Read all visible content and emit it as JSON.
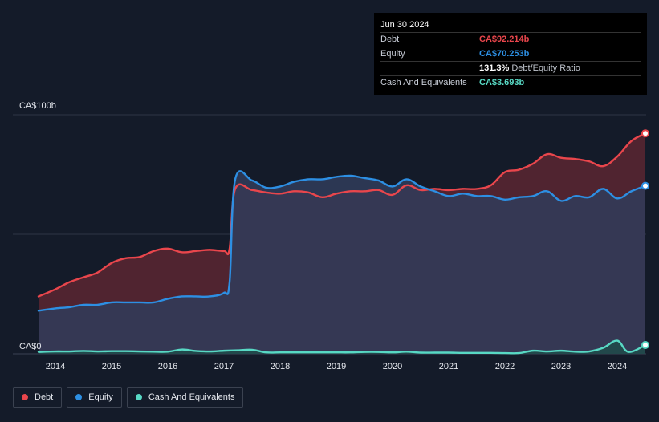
{
  "chart_data": {
    "type": "area",
    "y_top_label": "CA$100b",
    "y_bottom_label": "CA$0",
    "ylim": [
      0,
      100
    ],
    "xlim": [
      2013.7,
      2024.5
    ],
    "grid": true,
    "legend_position": "bottom-left",
    "x_ticks": [
      {
        "value": 2014,
        "label": "2014"
      },
      {
        "value": 2015,
        "label": "2015"
      },
      {
        "value": 2016,
        "label": "2016"
      },
      {
        "value": 2017,
        "label": "2017"
      },
      {
        "value": 2018,
        "label": "2018"
      },
      {
        "value": 2019,
        "label": "2019"
      },
      {
        "value": 2020,
        "label": "2020"
      },
      {
        "value": 2021,
        "label": "2021"
      },
      {
        "value": 2022,
        "label": "2022"
      },
      {
        "value": 2023,
        "label": "2023"
      },
      {
        "value": 2024,
        "label": "2024"
      }
    ],
    "series": [
      {
        "name": "Debt",
        "color": "#e9464c",
        "fill": "#5a2631",
        "points": [
          [
            2013.7,
            24
          ],
          [
            2014.0,
            27
          ],
          [
            2014.25,
            30
          ],
          [
            2014.5,
            32
          ],
          [
            2014.75,
            34
          ],
          [
            2015.0,
            38
          ],
          [
            2015.25,
            40
          ],
          [
            2015.5,
            40.5
          ],
          [
            2015.75,
            43
          ],
          [
            2016.0,
            44
          ],
          [
            2016.25,
            42.5
          ],
          [
            2016.5,
            43
          ],
          [
            2016.75,
            43.5
          ],
          [
            2017.0,
            43
          ],
          [
            2017.1,
            44
          ],
          [
            2017.2,
            69
          ],
          [
            2017.5,
            68.5
          ],
          [
            2017.75,
            67.5
          ],
          [
            2018.0,
            67
          ],
          [
            2018.25,
            68
          ],
          [
            2018.5,
            67.5
          ],
          [
            2018.75,
            65.5
          ],
          [
            2019.0,
            67
          ],
          [
            2019.25,
            68
          ],
          [
            2019.5,
            68
          ],
          [
            2019.75,
            68.5
          ],
          [
            2020.0,
            66.5
          ],
          [
            2020.25,
            70.5
          ],
          [
            2020.5,
            68.5
          ],
          [
            2020.75,
            69
          ],
          [
            2021.0,
            68.5
          ],
          [
            2021.25,
            69
          ],
          [
            2021.5,
            69
          ],
          [
            2021.75,
            70.5
          ],
          [
            2022.0,
            76
          ],
          [
            2022.25,
            77
          ],
          [
            2022.5,
            79.5
          ],
          [
            2022.75,
            83.5
          ],
          [
            2023.0,
            82
          ],
          [
            2023.25,
            81.5
          ],
          [
            2023.5,
            80.5
          ],
          [
            2023.75,
            78.5
          ],
          [
            2024.0,
            82.5
          ],
          [
            2024.25,
            89
          ],
          [
            2024.5,
            92.214
          ]
        ]
      },
      {
        "name": "Equity",
        "color": "#2d8fe3",
        "fill": "#303c5a",
        "points": [
          [
            2013.7,
            18
          ],
          [
            2014.0,
            19
          ],
          [
            2014.25,
            19.5
          ],
          [
            2014.5,
            20.5
          ],
          [
            2014.75,
            20.5
          ],
          [
            2015.0,
            21.5
          ],
          [
            2015.25,
            21.5
          ],
          [
            2015.5,
            21.5
          ],
          [
            2015.75,
            21.5
          ],
          [
            2016.0,
            23
          ],
          [
            2016.25,
            24
          ],
          [
            2016.5,
            24
          ],
          [
            2016.75,
            24
          ],
          [
            2017.0,
            25.5
          ],
          [
            2017.1,
            30
          ],
          [
            2017.2,
            73
          ],
          [
            2017.5,
            72.5
          ],
          [
            2017.75,
            69.5
          ],
          [
            2018.0,
            70
          ],
          [
            2018.25,
            72
          ],
          [
            2018.5,
            73
          ],
          [
            2018.75,
            73
          ],
          [
            2019.0,
            74
          ],
          [
            2019.25,
            74.5
          ],
          [
            2019.5,
            73.5
          ],
          [
            2019.75,
            72.5
          ],
          [
            2020.0,
            70
          ],
          [
            2020.25,
            73
          ],
          [
            2020.5,
            70
          ],
          [
            2020.75,
            68
          ],
          [
            2021.0,
            66
          ],
          [
            2021.25,
            67
          ],
          [
            2021.5,
            66
          ],
          [
            2021.75,
            66
          ],
          [
            2022.0,
            64.5
          ],
          [
            2022.25,
            65.5
          ],
          [
            2022.5,
            66
          ],
          [
            2022.75,
            68
          ],
          [
            2023.0,
            64
          ],
          [
            2023.25,
            66
          ],
          [
            2023.5,
            65.5
          ],
          [
            2023.75,
            69
          ],
          [
            2024.0,
            65
          ],
          [
            2024.25,
            68
          ],
          [
            2024.5,
            70.253
          ]
        ]
      },
      {
        "name": "Cash And Equivalents",
        "color": "#58d8c4",
        "fill": "#1f4b4a",
        "points": [
          [
            2013.7,
            0.8
          ],
          [
            2014.0,
            1.0
          ],
          [
            2014.25,
            1.0
          ],
          [
            2014.5,
            1.2
          ],
          [
            2014.75,
            1.0
          ],
          [
            2015.0,
            1.1
          ],
          [
            2015.25,
            1.1
          ],
          [
            2015.5,
            1.0
          ],
          [
            2015.75,
            0.9
          ],
          [
            2016.0,
            0.9
          ],
          [
            2016.25,
            1.8
          ],
          [
            2016.5,
            1.2
          ],
          [
            2016.75,
            1.0
          ],
          [
            2017.0,
            1.3
          ],
          [
            2017.25,
            1.5
          ],
          [
            2017.5,
            1.7
          ],
          [
            2017.75,
            0.6
          ],
          [
            2018.0,
            0.6
          ],
          [
            2018.25,
            0.6
          ],
          [
            2018.5,
            0.6
          ],
          [
            2018.75,
            0.6
          ],
          [
            2019.0,
            0.6
          ],
          [
            2019.25,
            0.6
          ],
          [
            2019.5,
            0.8
          ],
          [
            2019.75,
            0.8
          ],
          [
            2020.0,
            0.6
          ],
          [
            2020.25,
            0.9
          ],
          [
            2020.5,
            0.5
          ],
          [
            2020.75,
            0.5
          ],
          [
            2021.0,
            0.5
          ],
          [
            2021.25,
            0.4
          ],
          [
            2021.5,
            0.4
          ],
          [
            2021.75,
            0.4
          ],
          [
            2022.0,
            0.3
          ],
          [
            2022.25,
            0.3
          ],
          [
            2022.5,
            1.3
          ],
          [
            2022.75,
            1.0
          ],
          [
            2023.0,
            1.3
          ],
          [
            2023.25,
            0.9
          ],
          [
            2023.5,
            1.0
          ],
          [
            2023.75,
            2.5
          ],
          [
            2024.0,
            5.5
          ],
          [
            2024.2,
            0.8
          ],
          [
            2024.5,
            3.693
          ]
        ]
      }
    ]
  },
  "tooltip": {
    "date": "Jun 30 2024",
    "rows": [
      {
        "label": "Debt",
        "value": "CA$92.214b",
        "color": "#e9464c",
        "extra": ""
      },
      {
        "label": "Equity",
        "value": "CA$70.253b",
        "color": "#2d8fe3",
        "extra": ""
      },
      {
        "label": "",
        "value": "131.3%",
        "color": "#ffffff",
        "extra": "Debt/Equity Ratio"
      },
      {
        "label": "Cash And Equivalents",
        "value": "CA$3.693b",
        "color": "#58d8c4",
        "extra": ""
      }
    ]
  },
  "legend": [
    {
      "label": "Debt",
      "color": "#e9464c"
    },
    {
      "label": "Equity",
      "color": "#2d8fe3"
    },
    {
      "label": "Cash And Equivalents",
      "color": "#58d8c4"
    }
  ]
}
